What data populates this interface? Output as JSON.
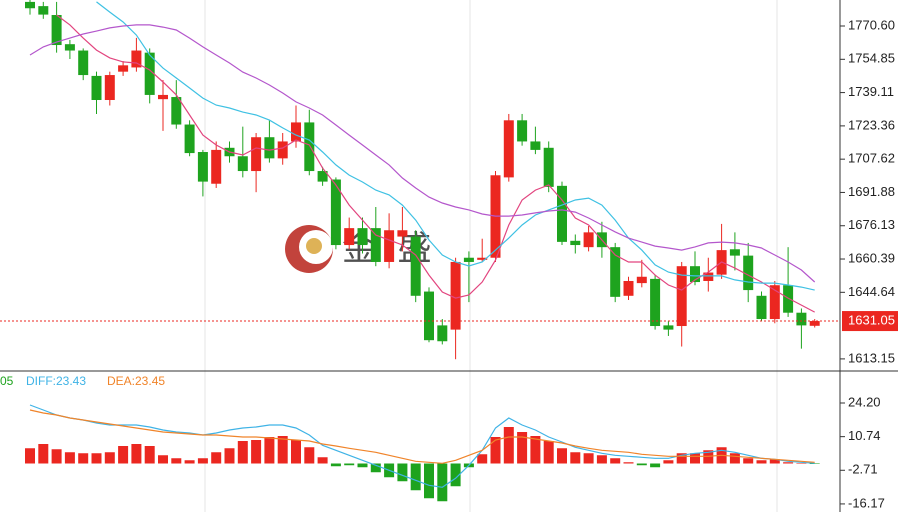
{
  "chart_data": [
    {
      "type": "candlestick",
      "watermark": "金 盛",
      "up_color": "#eb2720",
      "down_color": "#1ea31e",
      "ohlc": {
        "open": [
          1782,
          1780,
          1775.8,
          1762,
          1759,
          1747,
          1735.6,
          1749,
          1751,
          1758,
          1736,
          1737,
          1724,
          1711,
          1696,
          1713,
          1709,
          1702,
          1718,
          1708,
          1716,
          1725,
          1702,
          1698,
          1667,
          1675,
          1675,
          1659,
          1671,
          1671,
          1645,
          1629,
          1627,
          1661,
          1660,
          1661,
          1699,
          1726,
          1716,
          1713,
          1695,
          1669,
          1666,
          1673,
          1666,
          1643,
          1649,
          1651,
          1629,
          1628.7,
          1657,
          1650,
          1653,
          1665,
          1662,
          1643,
          1632,
          1648,
          1635,
          1628.8
        ],
        "high": [
          1783,
          1782,
          1782,
          1764,
          1760,
          1749,
          1749,
          1754,
          1765,
          1760,
          1745,
          1745,
          1726,
          1712,
          1716,
          1716,
          1723,
          1720,
          1726,
          1720,
          1733,
          1731,
          1704,
          1699,
          1680,
          1680,
          1685,
          1682,
          1685,
          1674,
          1647,
          1632,
          1661,
          1664,
          1670,
          1702,
          1729,
          1729,
          1723,
          1716,
          1697,
          1672,
          1676,
          1678,
          1668,
          1652,
          1660,
          1653,
          1631,
          1659,
          1664,
          1661,
          1677,
          1673,
          1668,
          1645,
          1650,
          1666,
          1637,
          1632
        ],
        "low": [
          1776,
          1774,
          1758,
          1755,
          1745,
          1729,
          1733,
          1747,
          1749,
          1734,
          1721,
          1722,
          1709,
          1690,
          1694,
          1706,
          1699,
          1692,
          1706,
          1705,
          1713,
          1700,
          1695,
          1665,
          1665,
          1663,
          1657,
          1656,
          1664,
          1640,
          1621,
          1620,
          1613,
          1640,
          1659,
          1659,
          1697,
          1714,
          1710,
          1692,
          1667,
          1663,
          1664,
          1661,
          1640,
          1641,
          1647,
          1627,
          1624,
          1619,
          1648,
          1645,
          1651,
          1655,
          1640,
          1631,
          1630,
          1633,
          1618,
          1628
        ],
        "close": [
          1779,
          1776,
          1761.6,
          1759,
          1747.4,
          1735.6,
          1747.4,
          1752,
          1759,
          1738,
          1738,
          1724,
          1710.5,
          1697,
          1712,
          1709,
          1702,
          1718,
          1708,
          1716,
          1725,
          1702,
          1697,
          1667,
          1675,
          1667,
          1659,
          1674,
          1674,
          1643,
          1622,
          1621.5,
          1659,
          1659,
          1661,
          1700,
          1726,
          1716,
          1712,
          1694.5,
          1668.5,
          1667,
          1673,
          1666,
          1642.5,
          1650,
          1652,
          1628.7,
          1627,
          1657,
          1649.5,
          1654,
          1664.6,
          1662,
          1645.7,
          1632,
          1648,
          1635,
          1629,
          1631.05
        ]
      },
      "moving_averages": [
        {
          "color": "#e2457f",
          "values": [
            null,
            null,
            1775.8,
            1771.1,
            1764.9,
            1759.2,
            1755.5,
            1753.6,
            1753.1,
            1749.8,
            1744.1,
            1738.0,
            1728.5,
            1719.0,
            1714.3,
            1711.0,
            1709.6,
            1712.9,
            1711.9,
            1712.9,
            1716.7,
            1714.3,
            1703.4,
            1695.4,
            1685.9,
            1678.8,
            1671.7,
            1669.4,
            1667.0,
            1662.3,
            1652.8,
            1644.8,
            1641.9,
            1643.4,
            1649.5,
            1659.9,
            1676.5,
            1688.3,
            1693.0,
            1695.4,
            1688.3,
            1679.8,
            1676.5,
            1669.4,
            1662.3,
            1659.0,
            1659.0,
            1652.8,
            1648.1,
            1645.7,
            1650.5,
            1654.2,
            1659.0,
            1656.1,
            1652.8,
            1649.5,
            1645.7,
            1641.9,
            1638.6,
            1635.3
          ]
        },
        {
          "color": "#3fc1e3",
          "values": [
            null,
            null,
            null,
            null,
            null,
            1782.0,
            1777.2,
            1772.5,
            1766.3,
            1756.9,
            1750.7,
            1746.0,
            1741.3,
            1736.5,
            1733.2,
            1731.8,
            1729.9,
            1728.5,
            1726.1,
            1722.4,
            1719.0,
            1716.7,
            1711.0,
            1704.9,
            1700.1,
            1696.8,
            1693.0,
            1690.7,
            1685.9,
            1678.8,
            1669.4,
            1662.3,
            1659.0,
            1657.1,
            1659.0,
            1664.6,
            1670.3,
            1676.5,
            1681.2,
            1683.6,
            1685.9,
            1688.3,
            1689.2,
            1685.9,
            1678.8,
            1670.3,
            1664.6,
            1657.6,
            1654.2,
            1652.8,
            1652.4,
            1652.4,
            1652.4,
            1650.5,
            1649.5,
            1649.0,
            1649.0,
            1648.1,
            1647.1,
            1645.7
          ]
        },
        {
          "color": "#b457cc",
          "values": [
            1756.9,
            1760.7,
            1763.0,
            1764.9,
            1766.8,
            1768.2,
            1769.7,
            1770.6,
            1771.1,
            1771.1,
            1770.1,
            1768.7,
            1764.9,
            1760.7,
            1756.9,
            1753.1,
            1748.8,
            1746.0,
            1742.7,
            1738.9,
            1734.7,
            1731.8,
            1728.5,
            1723.8,
            1719.0,
            1714.3,
            1709.6,
            1704.9,
            1698.7,
            1694.0,
            1689.7,
            1686.9,
            1685.0,
            1683.6,
            1681.7,
            1680.7,
            1680.7,
            1681.2,
            1682.2,
            1683.1,
            1683.6,
            1682.6,
            1679.8,
            1676.5,
            1673.2,
            1670.3,
            1668.4,
            1666.5,
            1665.6,
            1664.6,
            1666.1,
            1668.0,
            1668.4,
            1668.0,
            1667.0,
            1665.6,
            1662.3,
            1659.0,
            1655.2,
            1649.5
          ]
        }
      ],
      "last_price": 1631.05,
      "last_price_color": "#eb2720",
      "ylim": [
        1607.9,
        1782.9
      ],
      "yticks": [
        {
          "value": 1770.6,
          "label": "1770.60"
        },
        1754.85,
        1739.11,
        1723.36,
        1707.62,
        1691.88,
        1676.13,
        1660.39,
        1644.64,
        1613.15
      ]
    },
    {
      "type": "macd",
      "legend_fragment": "05",
      "diff_label": "DIFF:23.43",
      "dea_label": "DEA:23.45",
      "up_color": "#eb2720",
      "down_color": "#1ea31e",
      "histogram": [
        6.1,
        7.8,
        5.7,
        4.5,
        4.1,
        4.1,
        4.5,
        7.0,
        7.8,
        7.0,
        3.3,
        2.1,
        1.3,
        2.1,
        4.5,
        6.1,
        9.0,
        9.4,
        10.6,
        11.0,
        9.4,
        6.5,
        2.5,
        -1.1,
        -0.7,
        -1.5,
        -3.5,
        -5.5,
        -7.1,
        -10.7,
        -13.9,
        -15.1,
        -9.1,
        -1.5,
        3.7,
        10.6,
        14.6,
        12.6,
        11.0,
        9.0,
        6.1,
        4.5,
        4.1,
        3.3,
        2.1,
        0.5,
        -0.7,
        -1.5,
        1.3,
        4.1,
        4.1,
        5.3,
        6.5,
        4.1,
        2.1,
        1.3,
        1.7,
        0.5,
        0.1,
        -0.05
      ],
      "diff": {
        "color": "#3fb3e6",
        "values": [
          23.4,
          21.4,
          19.4,
          18.2,
          17.4,
          16.2,
          15.4,
          15.4,
          15.4,
          14.6,
          13.4,
          12.6,
          12.2,
          11.4,
          12.2,
          13.4,
          14.2,
          14.6,
          15.4,
          15.4,
          14.2,
          11.4,
          7.3,
          5.3,
          3.3,
          1.3,
          -0.7,
          -2.7,
          -4.7,
          -6.7,
          -8.7,
          -9.5,
          -5.9,
          -0.7,
          5.3,
          14.2,
          18.2,
          15.4,
          13.4,
          10.6,
          8.6,
          6.5,
          5.3,
          4.1,
          3.3,
          2.9,
          2.5,
          2.1,
          2.1,
          3.3,
          4.1,
          4.5,
          5.3,
          4.5,
          3.3,
          2.1,
          1.7,
          0.9,
          0.5,
          0.1
        ]
      },
      "dea": {
        "color": "#f0842a",
        "values": [
          21.4,
          20.2,
          19.4,
          18.2,
          17.4,
          16.6,
          15.8,
          15.0,
          14.2,
          13.4,
          12.6,
          12.2,
          11.8,
          11.4,
          11.4,
          11.0,
          10.6,
          10.6,
          10.2,
          9.8,
          9.4,
          9.0,
          7.8,
          7.0,
          6.1,
          5.3,
          4.5,
          3.3,
          2.1,
          0.9,
          0.5,
          0.1,
          1.3,
          3.3,
          5.3,
          9.4,
          10.6,
          10.6,
          9.8,
          9.0,
          8.2,
          7.0,
          6.1,
          5.3,
          4.9,
          4.5,
          3.7,
          3.3,
          2.9,
          2.9,
          2.9,
          2.9,
          3.3,
          2.9,
          2.5,
          2.1,
          1.7,
          1.3,
          0.9,
          0.5
        ]
      },
      "ylim": [
        -19.4,
        36.6
      ],
      "yticks": [
        {
          "value": 24.2,
          "label": "24.20"
        },
        10.74,
        -2.71,
        -16.17
      ]
    }
  ]
}
